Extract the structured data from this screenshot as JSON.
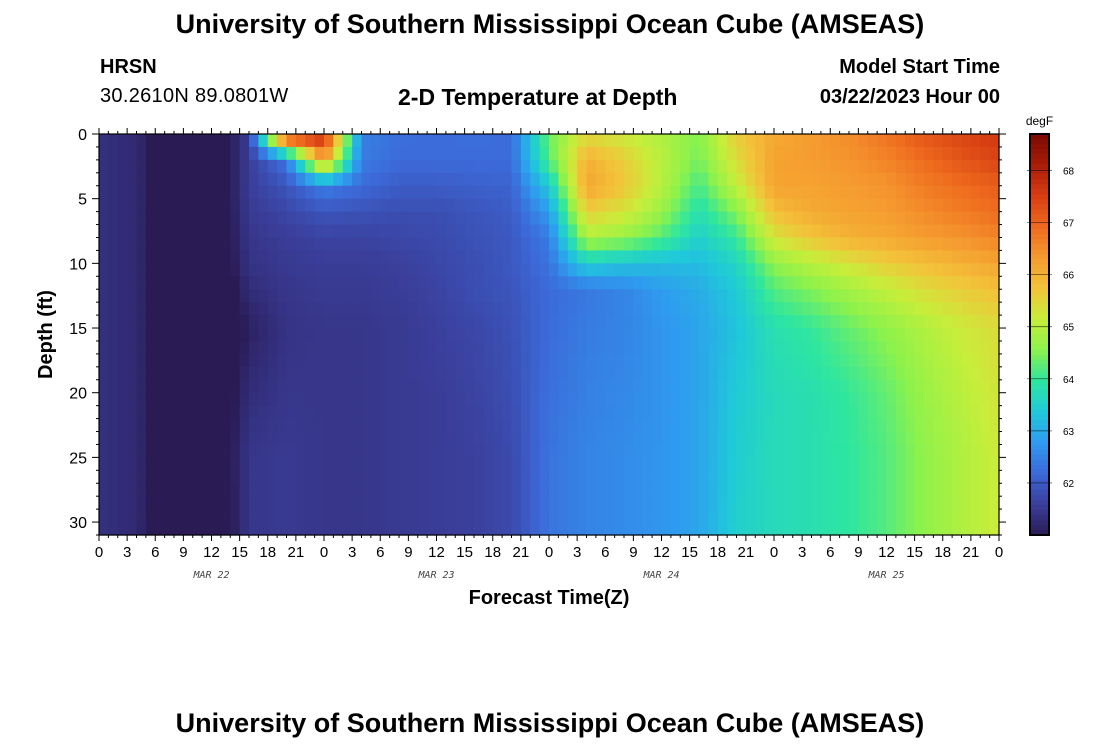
{
  "header": {
    "title": "University of Southern Mississippi Ocean Cube (AMSEAS)",
    "station": "HRSN",
    "coords": "30.2610N  89.0801W",
    "subtitle": "2-D Temperature at Depth",
    "model_start_label": "Model Start Time",
    "model_start_date": "03/22/2023 Hour 00"
  },
  "footer": {
    "title": "University of Southern Mississippi Ocean Cube (AMSEAS)"
  },
  "chart_data": {
    "type": "heatmap",
    "title": "2-D Temperature at Depth",
    "xlabel": "Forecast Time(Z)",
    "ylabel": "Depth (ft)",
    "x_range_hours": [
      0,
      96
    ],
    "x_tick_labels": [
      "0",
      "3",
      "6",
      "9",
      "12",
      "15",
      "18",
      "21",
      "0",
      "3",
      "6",
      "9",
      "12",
      "15",
      "18",
      "21",
      "0",
      "3",
      "6",
      "9",
      "12",
      "15",
      "18",
      "21",
      "0",
      "3",
      "6",
      "9",
      "12",
      "15",
      "18",
      "21",
      "0"
    ],
    "day_labels": [
      "MAR 22",
      "MAR 23",
      "MAR 24",
      "MAR 25"
    ],
    "y_range_ft": [
      0,
      31
    ],
    "y_ticks": [
      0,
      5,
      10,
      15,
      20,
      25,
      30
    ],
    "y_inverted": true,
    "colorbar": {
      "label": "degF",
      "range": [
        61.0,
        68.7
      ],
      "ticks": [
        62,
        63,
        64,
        65,
        66,
        67,
        68
      ]
    },
    "colormap": [
      "#2a1b55",
      "#3b3f9c",
      "#3c6ad9",
      "#2f9bf0",
      "#20c9d9",
      "#2ee6a0",
      "#8cf24c",
      "#c7ee3a",
      "#f3c33a",
      "#f59a2f",
      "#ee6a1e",
      "#d63d12",
      "#a81d08",
      "#7a0a03"
    ],
    "grid_hours": [
      0,
      4,
      8,
      12,
      16,
      20,
      24,
      28,
      32,
      36,
      40,
      44,
      48,
      52,
      56,
      60,
      64,
      68,
      72,
      76,
      80,
      84,
      88,
      92,
      96
    ],
    "grid_depths_ft": [
      0,
      2,
      4,
      6,
      8,
      10,
      12,
      15,
      20,
      25,
      31
    ],
    "temperature_degF": [
      [
        61.35,
        61.25,
        60.55,
        60.55,
        61.55,
        68.0,
        67.9,
        62.45,
        62.25,
        62.2,
        62.25,
        62.2,
        64.35,
        65.4,
        65.2,
        64.9,
        64.5,
        65.6,
        66.1,
        66.3,
        66.5,
        66.8,
        67.2,
        67.4,
        67.6
      ],
      [
        61.35,
        61.25,
        60.55,
        60.55,
        61.55,
        62.35,
        66.4,
        62.4,
        62.2,
        62.2,
        62.2,
        62.2,
        64.2,
        66.0,
        65.6,
        65.0,
        64.4,
        65.4,
        66.2,
        66.3,
        66.4,
        66.6,
        66.9,
        67.2,
        67.4
      ],
      [
        61.35,
        61.25,
        60.55,
        60.55,
        61.55,
        61.9,
        62.45,
        62.2,
        62.0,
        62.0,
        62.05,
        62.1,
        63.4,
        66.2,
        65.7,
        65.0,
        64.1,
        65.1,
        66.2,
        66.2,
        66.3,
        66.4,
        66.7,
        66.9,
        67.1
      ],
      [
        61.35,
        61.25,
        60.6,
        60.55,
        61.5,
        61.7,
        61.9,
        61.85,
        61.8,
        61.8,
        61.9,
        62.0,
        62.8,
        65.6,
        65.3,
        64.7,
        63.8,
        64.5,
        65.8,
        66.1,
        66.2,
        66.3,
        66.5,
        66.7,
        66.9
      ],
      [
        61.35,
        61.25,
        60.6,
        60.55,
        61.45,
        61.55,
        61.65,
        61.65,
        61.7,
        61.75,
        61.85,
        61.95,
        62.4,
        64.9,
        64.7,
        64.2,
        63.5,
        64.0,
        65.3,
        65.7,
        66.0,
        66.1,
        66.3,
        66.4,
        66.6
      ],
      [
        61.35,
        61.25,
        60.6,
        60.5,
        61.4,
        61.5,
        61.55,
        61.55,
        61.6,
        61.7,
        61.8,
        61.95,
        62.3,
        63.5,
        63.3,
        63.2,
        63.2,
        63.6,
        64.6,
        65.0,
        65.3,
        65.6,
        65.8,
        66.0,
        66.2
      ],
      [
        61.35,
        61.25,
        60.6,
        60.45,
        61.3,
        61.45,
        61.5,
        61.5,
        61.55,
        61.65,
        61.8,
        61.9,
        62.2,
        62.35,
        62.5,
        62.8,
        63.0,
        63.4,
        64.2,
        64.5,
        64.8,
        65.1,
        65.4,
        65.6,
        65.8
      ],
      [
        61.35,
        61.25,
        60.6,
        60.4,
        61.1,
        61.4,
        61.45,
        61.45,
        61.5,
        61.6,
        61.7,
        61.85,
        62.2,
        62.4,
        62.5,
        62.7,
        62.9,
        63.3,
        63.8,
        64.0,
        64.3,
        64.6,
        64.9,
        65.2,
        65.4
      ],
      [
        61.35,
        61.25,
        60.6,
        60.5,
        61.3,
        61.45,
        61.45,
        61.45,
        61.5,
        61.55,
        61.65,
        61.8,
        62.25,
        62.45,
        62.55,
        62.7,
        62.9,
        63.4,
        63.7,
        63.8,
        64.0,
        64.3,
        64.7,
        65.0,
        65.3
      ],
      [
        61.35,
        61.25,
        60.55,
        60.55,
        61.45,
        61.5,
        61.45,
        61.45,
        61.5,
        61.55,
        61.6,
        61.75,
        62.3,
        62.5,
        62.6,
        62.7,
        62.9,
        63.45,
        63.7,
        63.8,
        63.95,
        64.2,
        64.6,
        64.9,
        65.2
      ],
      [
        61.35,
        61.25,
        60.5,
        60.5,
        61.45,
        61.5,
        61.45,
        61.45,
        61.5,
        61.55,
        61.6,
        61.75,
        62.3,
        62.5,
        62.6,
        62.7,
        62.9,
        63.5,
        63.7,
        63.8,
        63.95,
        64.2,
        64.6,
        64.9,
        65.2
      ]
    ]
  }
}
